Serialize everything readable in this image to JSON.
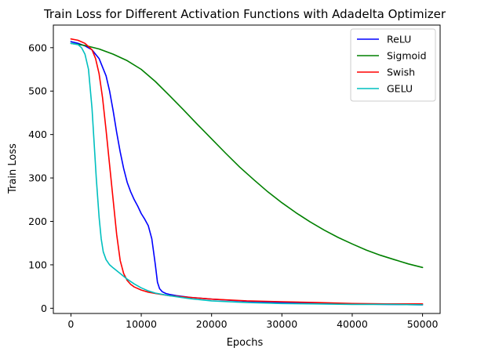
{
  "chart_data": {
    "type": "line",
    "title": "Train Loss for Different Activation Functions with Adadelta Optimizer",
    "xlabel": "Epochs",
    "ylabel": "Train Loss",
    "xlim": [
      -2500,
      52500
    ],
    "ylim": [
      -12,
      652
    ],
    "xticks": [
      0,
      10000,
      20000,
      30000,
      40000,
      50000
    ],
    "xtick_labels": [
      "0",
      "10000",
      "20000",
      "30000",
      "40000",
      "50000"
    ],
    "yticks": [
      0,
      100,
      200,
      300,
      400,
      500,
      600
    ],
    "ytick_labels": [
      "0",
      "100",
      "200",
      "300",
      "400",
      "500",
      "600"
    ],
    "grid": false,
    "legend_position": "top-right",
    "series": [
      {
        "name": "ReLU",
        "color": "#0000ff",
        "x": [
          0,
          1000,
          2000,
          3000,
          4000,
          5000,
          5500,
          6000,
          6500,
          7000,
          7500,
          8000,
          8500,
          9000,
          9500,
          10000,
          10500,
          11000,
          11500,
          12000,
          12300,
          12600,
          13000,
          13500,
          14000,
          15000,
          17000,
          20000,
          25000,
          30000,
          35000,
          40000,
          45000,
          50000
        ],
        "y": [
          614,
          610,
          604,
          595,
          575,
          535,
          500,
          455,
          405,
          360,
          322,
          290,
          268,
          250,
          235,
          218,
          205,
          190,
          160,
          100,
          60,
          45,
          38,
          34,
          32,
          29,
          25,
          21,
          16,
          13,
          11,
          10,
          9,
          8
        ]
      },
      {
        "name": "Sigmoid",
        "color": "#008000",
        "x": [
          0,
          2000,
          4000,
          6000,
          8000,
          10000,
          12000,
          14000,
          16000,
          18000,
          20000,
          22000,
          24000,
          26000,
          28000,
          30000,
          32000,
          34000,
          36000,
          38000,
          40000,
          42000,
          44000,
          46000,
          48000,
          50000
        ],
        "y": [
          610,
          605,
          597,
          585,
          570,
          550,
          522,
          490,
          457,
          423,
          390,
          357,
          325,
          296,
          268,
          243,
          220,
          199,
          180,
          163,
          148,
          134,
          122,
          112,
          102,
          94
        ]
      },
      {
        "name": "Swish",
        "color": "#ff0000",
        "x": [
          0,
          1000,
          2000,
          3000,
          3500,
          4000,
          4500,
          5000,
          5500,
          6000,
          6500,
          7000,
          7500,
          8000,
          8500,
          9000,
          10000,
          11000,
          12000,
          14000,
          17000,
          20000,
          25000,
          30000,
          35000,
          40000,
          45000,
          50000
        ],
        "y": [
          620,
          617,
          610,
          595,
          575,
          540,
          485,
          410,
          330,
          250,
          170,
          110,
          80,
          64,
          55,
          49,
          42,
          37,
          34,
          29,
          25,
          21,
          17,
          15,
          13,
          11,
          10,
          10
        ]
      },
      {
        "name": "GELU",
        "color": "#00bfbf",
        "x": [
          0,
          1000,
          1500,
          2000,
          2500,
          3000,
          3300,
          3600,
          4000,
          4300,
          4600,
          5000,
          5500,
          6000,
          7000,
          8000,
          9000,
          10000,
          11000,
          12000,
          14000,
          17000,
          20000,
          25000,
          30000,
          35000,
          40000,
          45000,
          50000
        ],
        "y": [
          610,
          607,
          600,
          585,
          550,
          460,
          380,
          300,
          210,
          160,
          130,
          112,
          100,
          93,
          80,
          67,
          56,
          47,
          40,
          35,
          29,
          22,
          17,
          13,
          11,
          10,
          9,
          9,
          8
        ]
      }
    ]
  }
}
